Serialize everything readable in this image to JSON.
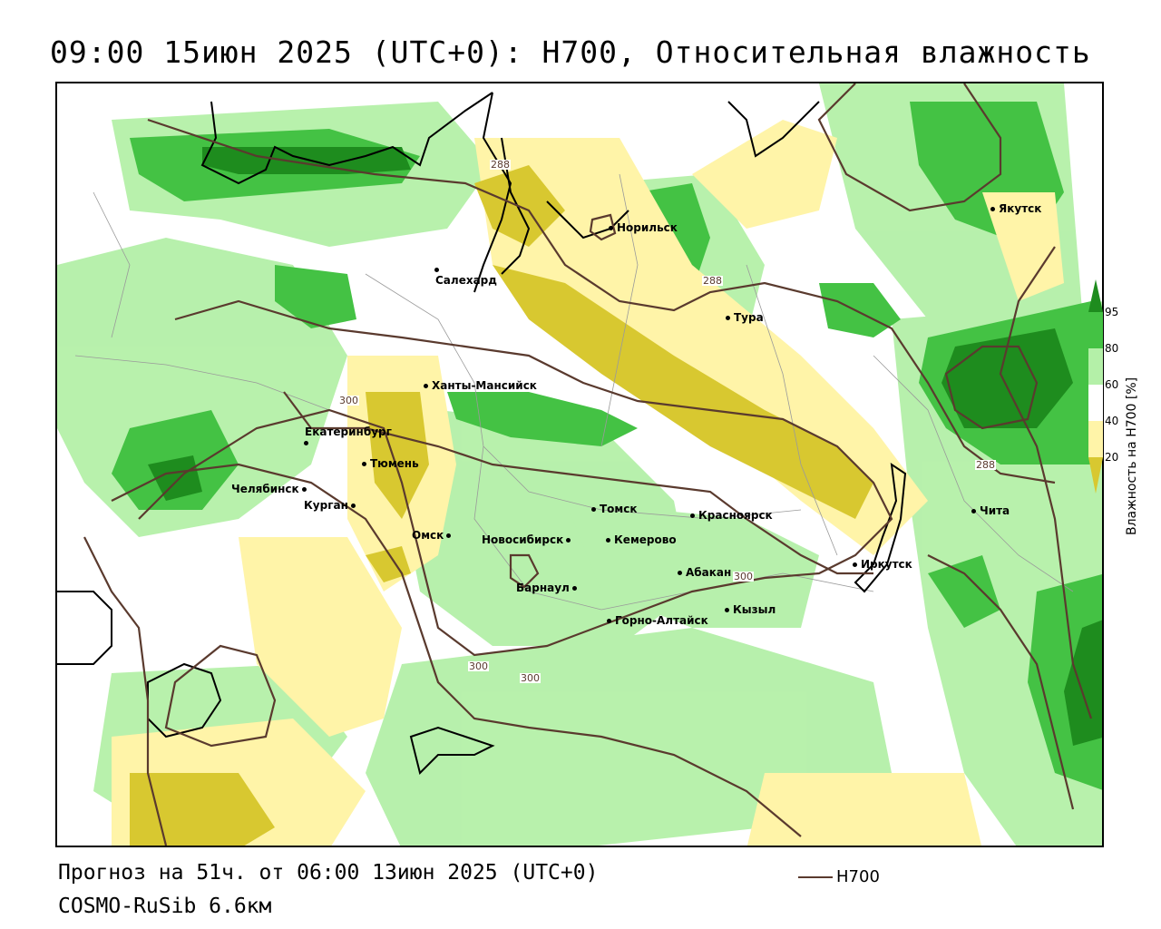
{
  "title": "09:00 15июн 2025 (UTC+0): H700, Относительная влажность",
  "footer": {
    "forecast": "Прогноз на 51ч. от 06:00 13июн 2025 (UTC+0)",
    "model": "COSMO-RuSib 6.6км",
    "legend_line_label": "H700"
  },
  "colorbar": {
    "title": "Влажность на H700 [%]",
    "ticks": [
      "95",
      "80",
      "60",
      "40",
      "20"
    ],
    "colors": {
      "gt95": "#1e8c1e",
      "80_95": "#44c244",
      "60_80": "#b4f0a8",
      "40_60": "#ffffff",
      "20_40": "#fff4a8",
      "lt20": "#d8c830"
    }
  },
  "contour_color": "#5a3a2e",
  "contour_labels": [
    "288",
    "288",
    "288",
    "300",
    "300",
    "300",
    "300"
  ],
  "cities": [
    {
      "name": "Салехард"
    },
    {
      "name": "Норильск"
    },
    {
      "name": "Якутск"
    },
    {
      "name": "Тура"
    },
    {
      "name": "Ханты-Мансийск"
    },
    {
      "name": "Екатеринбург"
    },
    {
      "name": "Тюмень"
    },
    {
      "name": "Челябинск"
    },
    {
      "name": "Курган"
    },
    {
      "name": "Омск"
    },
    {
      "name": "Новосибирск"
    },
    {
      "name": "Томск"
    },
    {
      "name": "Кемерово"
    },
    {
      "name": "Красноярск"
    },
    {
      "name": "Барнаул"
    },
    {
      "name": "Абакан"
    },
    {
      "name": "Кызыл"
    },
    {
      "name": "Горно-Алтайск"
    },
    {
      "name": "Иркутск"
    },
    {
      "name": "Чита"
    }
  ]
}
